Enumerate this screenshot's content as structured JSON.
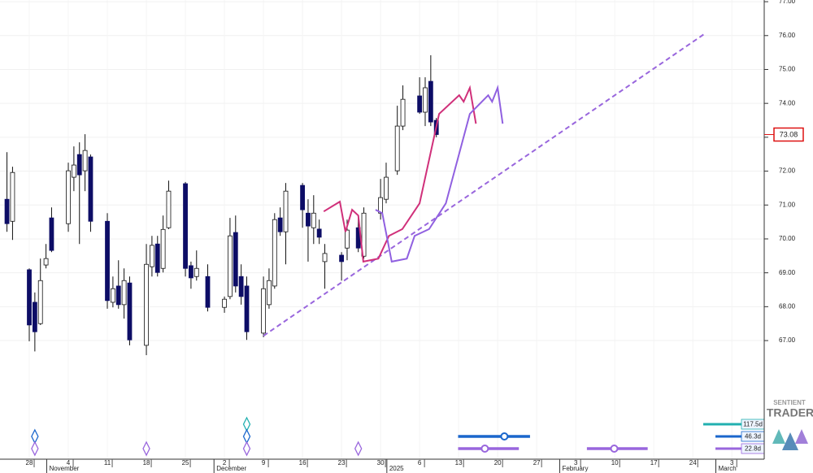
{
  "chart_data": {
    "type": "candlestick",
    "xlim": [
      -5.25,
      131.8
    ],
    "ylim": [
      63.5,
      77.05
    ],
    "grid": true,
    "yticks": [
      {
        "value": 77,
        "label": "77.00"
      },
      {
        "value": 76,
        "label": "76.00"
      },
      {
        "value": 75,
        "label": "75.00"
      },
      {
        "value": 74,
        "label": "74.00"
      },
      {
        "value": 73,
        "label": "73.00"
      },
      {
        "value": 72,
        "label": "72.00"
      },
      {
        "value": 71,
        "label": "71.00"
      },
      {
        "value": 70,
        "label": "70.00"
      },
      {
        "value": 69,
        "label": "69.00"
      },
      {
        "value": 68,
        "label": "68.00"
      },
      {
        "value": 67,
        "label": "67.00"
      }
    ],
    "xticks": [
      {
        "value": 0,
        "label": "28"
      },
      {
        "value": 7,
        "label": "4"
      },
      {
        "value": 14,
        "label": "11"
      },
      {
        "value": 21,
        "label": "18"
      },
      {
        "value": 28,
        "label": "25"
      },
      {
        "value": 35,
        "label": "2"
      },
      {
        "value": 42,
        "label": "9"
      },
      {
        "value": 49,
        "label": "16"
      },
      {
        "value": 56,
        "label": "23"
      },
      {
        "value": 63,
        "label": "30"
      },
      {
        "value": 70,
        "label": "6"
      },
      {
        "value": 77,
        "label": "13"
      },
      {
        "value": 84,
        "label": "20"
      },
      {
        "value": 91,
        "label": "27"
      },
      {
        "value": 98,
        "label": "3"
      },
      {
        "value": 105,
        "label": "10"
      },
      {
        "value": 112,
        "label": "17"
      },
      {
        "value": 119,
        "label": "24"
      },
      {
        "value": 126,
        "label": "3"
      }
    ],
    "xmonths": [
      {
        "value": 4,
        "label": "November"
      },
      {
        "value": 34,
        "label": "December"
      },
      {
        "value": 65,
        "label": "2025"
      },
      {
        "value": 96,
        "label": "February"
      },
      {
        "value": 124,
        "label": "March"
      }
    ],
    "up_color": "#ffffff",
    "down_color": "#0d0d66",
    "candles": {
      "x": [
        -4,
        -3,
        0,
        1,
        2,
        3,
        4,
        7,
        8,
        9,
        10,
        11,
        14,
        15,
        16,
        17,
        18,
        21,
        22,
        23,
        24,
        25,
        28,
        29,
        30,
        32,
        35,
        36,
        37,
        38,
        39,
        42,
        43,
        44,
        45,
        46,
        49,
        50,
        51,
        52,
        53,
        56,
        57,
        59,
        60,
        63,
        64,
        66,
        67,
        70,
        71,
        72,
        73
      ],
      "open": [
        71.17,
        70.52,
        69.09,
        68.13,
        67.5,
        69.23,
        70.62,
        70.45,
        71.82,
        72.49,
        72.01,
        72.42,
        70.52,
        68.13,
        68.61,
        68.06,
        68.7,
        66.86,
        69.18,
        69.85,
        69.13,
        70.33,
        71.63,
        69.21,
        68.89,
        68.89,
        67.98,
        68.3,
        70.19,
        68.89,
        68.61,
        67.22,
        68.06,
        68.61,
        70.62,
        70.21,
        71.58,
        70.76,
        70.33,
        70.29,
        69.33,
        69.52,
        69.73,
        70.33,
        69.49,
        70.76,
        71.17,
        72.01,
        73.33,
        74.22,
        73.74,
        74.65,
        73.5
      ],
      "high": [
        72.56,
        72.13,
        69.13,
        68.42,
        69.42,
        69.85,
        70.93,
        72.25,
        72.73,
        72.85,
        73.09,
        72.49,
        70.76,
        68.89,
        69.37,
        69.13,
        68.89,
        69.85,
        70.09,
        70.09,
        70.69,
        71.72,
        71.68,
        69.33,
        69.66,
        69.25,
        68.3,
        70.62,
        70.69,
        69.25,
        68.89,
        68.89,
        69.13,
        70.76,
        70.93,
        71.65,
        71.65,
        71.17,
        71.29,
        70.57,
        69.85,
        69.61,
        70.57,
        70.69,
        70.93,
        71.77,
        72.25,
        73.93,
        74.53,
        74.77,
        74.77,
        75.42,
        73.57
      ],
      "low": [
        70.21,
        69.97,
        66.98,
        66.68,
        67.46,
        69.13,
        69.61,
        70.21,
        71.41,
        69.85,
        71.41,
        70.21,
        67.94,
        67.98,
        67.94,
        67.65,
        66.86,
        66.57,
        68.89,
        68.89,
        69.01,
        70.29,
        68.89,
        68.53,
        68.77,
        67.86,
        67.82,
        68.22,
        68.42,
        68.06,
        67.02,
        67.1,
        67.94,
        68.53,
        70.09,
        69.25,
        70.33,
        69.33,
        69.85,
        69.85,
        68.53,
        68.77,
        69.37,
        69.61,
        69.42,
        70.57,
        71.05,
        71.89,
        73.21,
        73.69,
        73.33,
        73.33,
        73.0
      ],
      "close": [
        70.45,
        71.96,
        67.46,
        67.26,
        68.77,
        69.42,
        69.66,
        72.01,
        72.18,
        71.89,
        72.61,
        70.52,
        68.18,
        68.53,
        68.06,
        68.77,
        67.02,
        69.25,
        69.81,
        69.01,
        70.28,
        71.41,
        69.13,
        68.85,
        69.13,
        67.98,
        68.22,
        70.09,
        68.61,
        68.3,
        67.26,
        68.53,
        68.77,
        70.57,
        70.21,
        71.41,
        70.86,
        70.38,
        70.76,
        70.05,
        69.57,
        69.33,
        70.26,
        69.73,
        70.76,
        71.22,
        71.82,
        73.33,
        74.12,
        73.74,
        74.46,
        73.45,
        73.08
      ]
    },
    "last_price": 73.08,
    "last_price_color": "#dd1111",
    "trendline": {
      "color": "#9966dd",
      "x": [
        42,
        121
      ],
      "values": [
        67.14,
        76.04
      ]
    },
    "projections": [
      {
        "color": "#d0307a",
        "x": [
          52.8,
          55.7,
          56.7,
          57.9,
          59.0,
          59.9,
          62.6,
          64.5,
          66.9,
          70.0,
          73.5,
          77.1,
          77.9,
          79.0,
          80.1
        ],
        "values": [
          70.81,
          71.1,
          70.21,
          70.86,
          70.69,
          69.33,
          69.42,
          70.09,
          70.29,
          71.05,
          73.69,
          74.24,
          74.05,
          74.46,
          73.4
        ]
      },
      {
        "color": "#9060e0",
        "x": [
          62.1,
          63.3,
          65.0,
          67.7,
          69.1,
          71.7,
          74.7,
          79.0,
          82.3,
          83.0,
          84.0,
          84.9
        ],
        "values": [
          70.86,
          70.76,
          69.33,
          69.42,
          70.09,
          70.29,
          71.05,
          73.69,
          74.24,
          74.05,
          74.46,
          73.4
        ]
      }
    ],
    "cycles": [
      {
        "label": "117.5d",
        "color": "#22b0b0",
        "markers": [
          39
        ],
        "windows": []
      },
      {
        "label": "46.3d",
        "color": "#1a66cc",
        "markers": [
          1,
          39
        ],
        "windows": [
          {
            "x": [
              76.9,
              89.8
            ],
            "center": 85.2
          }
        ]
      },
      {
        "label": "22.8d",
        "color": "#9966dd",
        "markers": [
          1,
          21,
          39,
          59
        ],
        "windows": [
          {
            "x": [
              76.9,
              87.8
            ],
            "center": 81.7
          },
          {
            "x": [
              100.0,
              110.9
            ],
            "center": 104.9
          }
        ]
      }
    ]
  },
  "logo": {
    "top": "SENTIENT",
    "bottom": "TRADER"
  }
}
